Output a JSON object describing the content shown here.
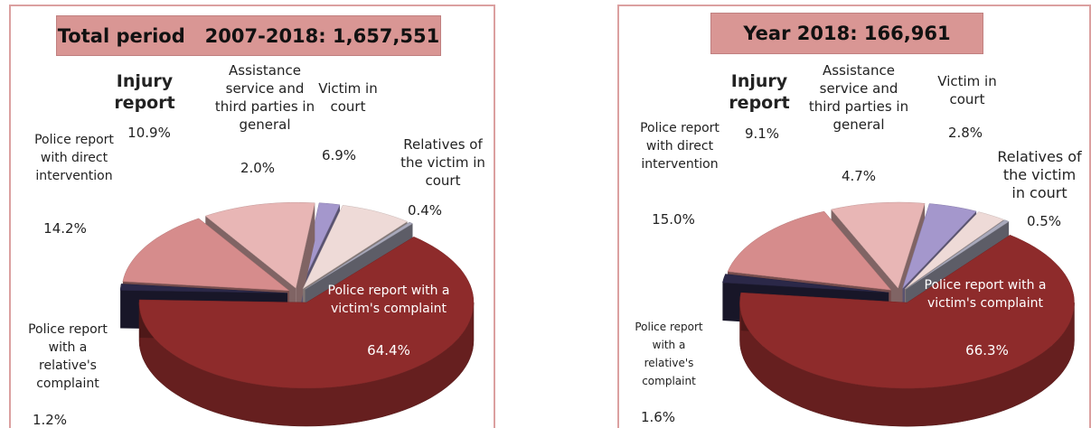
{
  "chart_data": [
    {
      "type": "pie",
      "title": "Total period   2007-2018: 1,657,551",
      "categories": [
        "Police report with a victim's complaint",
        "Police report with a relative's complaint",
        "Police report with direct intervention",
        "Injury report",
        "Assistance service and third parties in general",
        "Victim in court",
        "Relatives of the victim in court"
      ],
      "values": [
        64.4,
        1.2,
        14.2,
        10.9,
        2.0,
        6.9,
        0.4
      ],
      "value_labels": [
        "64.4%",
        "1.2%",
        "14.2%",
        "10.9%",
        "2.0%",
        "6.9%",
        "0.4%"
      ],
      "colors": [
        "#8e2b2b",
        "#2b2848",
        "#d68c8c",
        "#e8b6b5",
        "#a497cc",
        "#eedad7",
        "#a9a9bb"
      ]
    },
    {
      "type": "pie",
      "title": "Year 2018: 166,961",
      "categories": [
        "Police report with a victim's complaint",
        "Police report with a relative's complaint",
        "Police report with direct intervention",
        "Injury report",
        "Assistance service and third parties in general",
        "Victim in court",
        "Relatives of the victim in court"
      ],
      "values": [
        66.3,
        1.6,
        15.0,
        9.1,
        4.7,
        2.8,
        0.5
      ],
      "value_labels": [
        "66.3%",
        "1.6%",
        "15.0%",
        "9.1%",
        "4.7%",
        "2.8%",
        "0.5%"
      ],
      "colors": [
        "#8e2b2b",
        "#2b2848",
        "#d68c8c",
        "#e8b6b5",
        "#a497cc",
        "#eedad7",
        "#a9a9bb"
      ]
    }
  ]
}
